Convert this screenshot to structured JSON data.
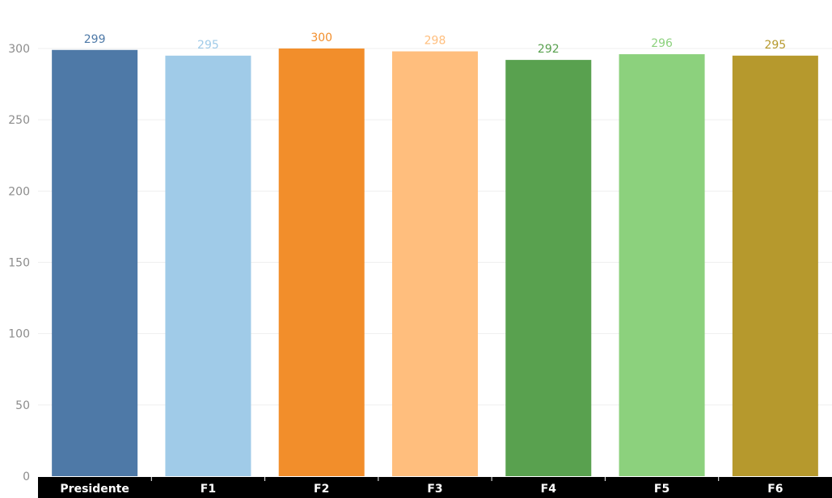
{
  "chart_data": {
    "type": "bar",
    "categories": [
      "Presidente",
      "F1",
      "F2",
      "F3",
      "F4",
      "F5",
      "F6"
    ],
    "values": [
      299,
      295,
      300,
      298,
      292,
      296,
      295
    ],
    "colors": [
      "#4e79a7",
      "#a0cbe8",
      "#f28e2b",
      "#ffbe7d",
      "#59a14f",
      "#8cd17d",
      "#b6992d"
    ],
    "title": "",
    "xlabel": "",
    "ylabel": "",
    "ylim": [
      0,
      300
    ],
    "yticks": [
      "0",
      "50",
      "100",
      "150",
      "200",
      "250",
      "300"
    ],
    "grid": true,
    "show_data_labels": true
  }
}
